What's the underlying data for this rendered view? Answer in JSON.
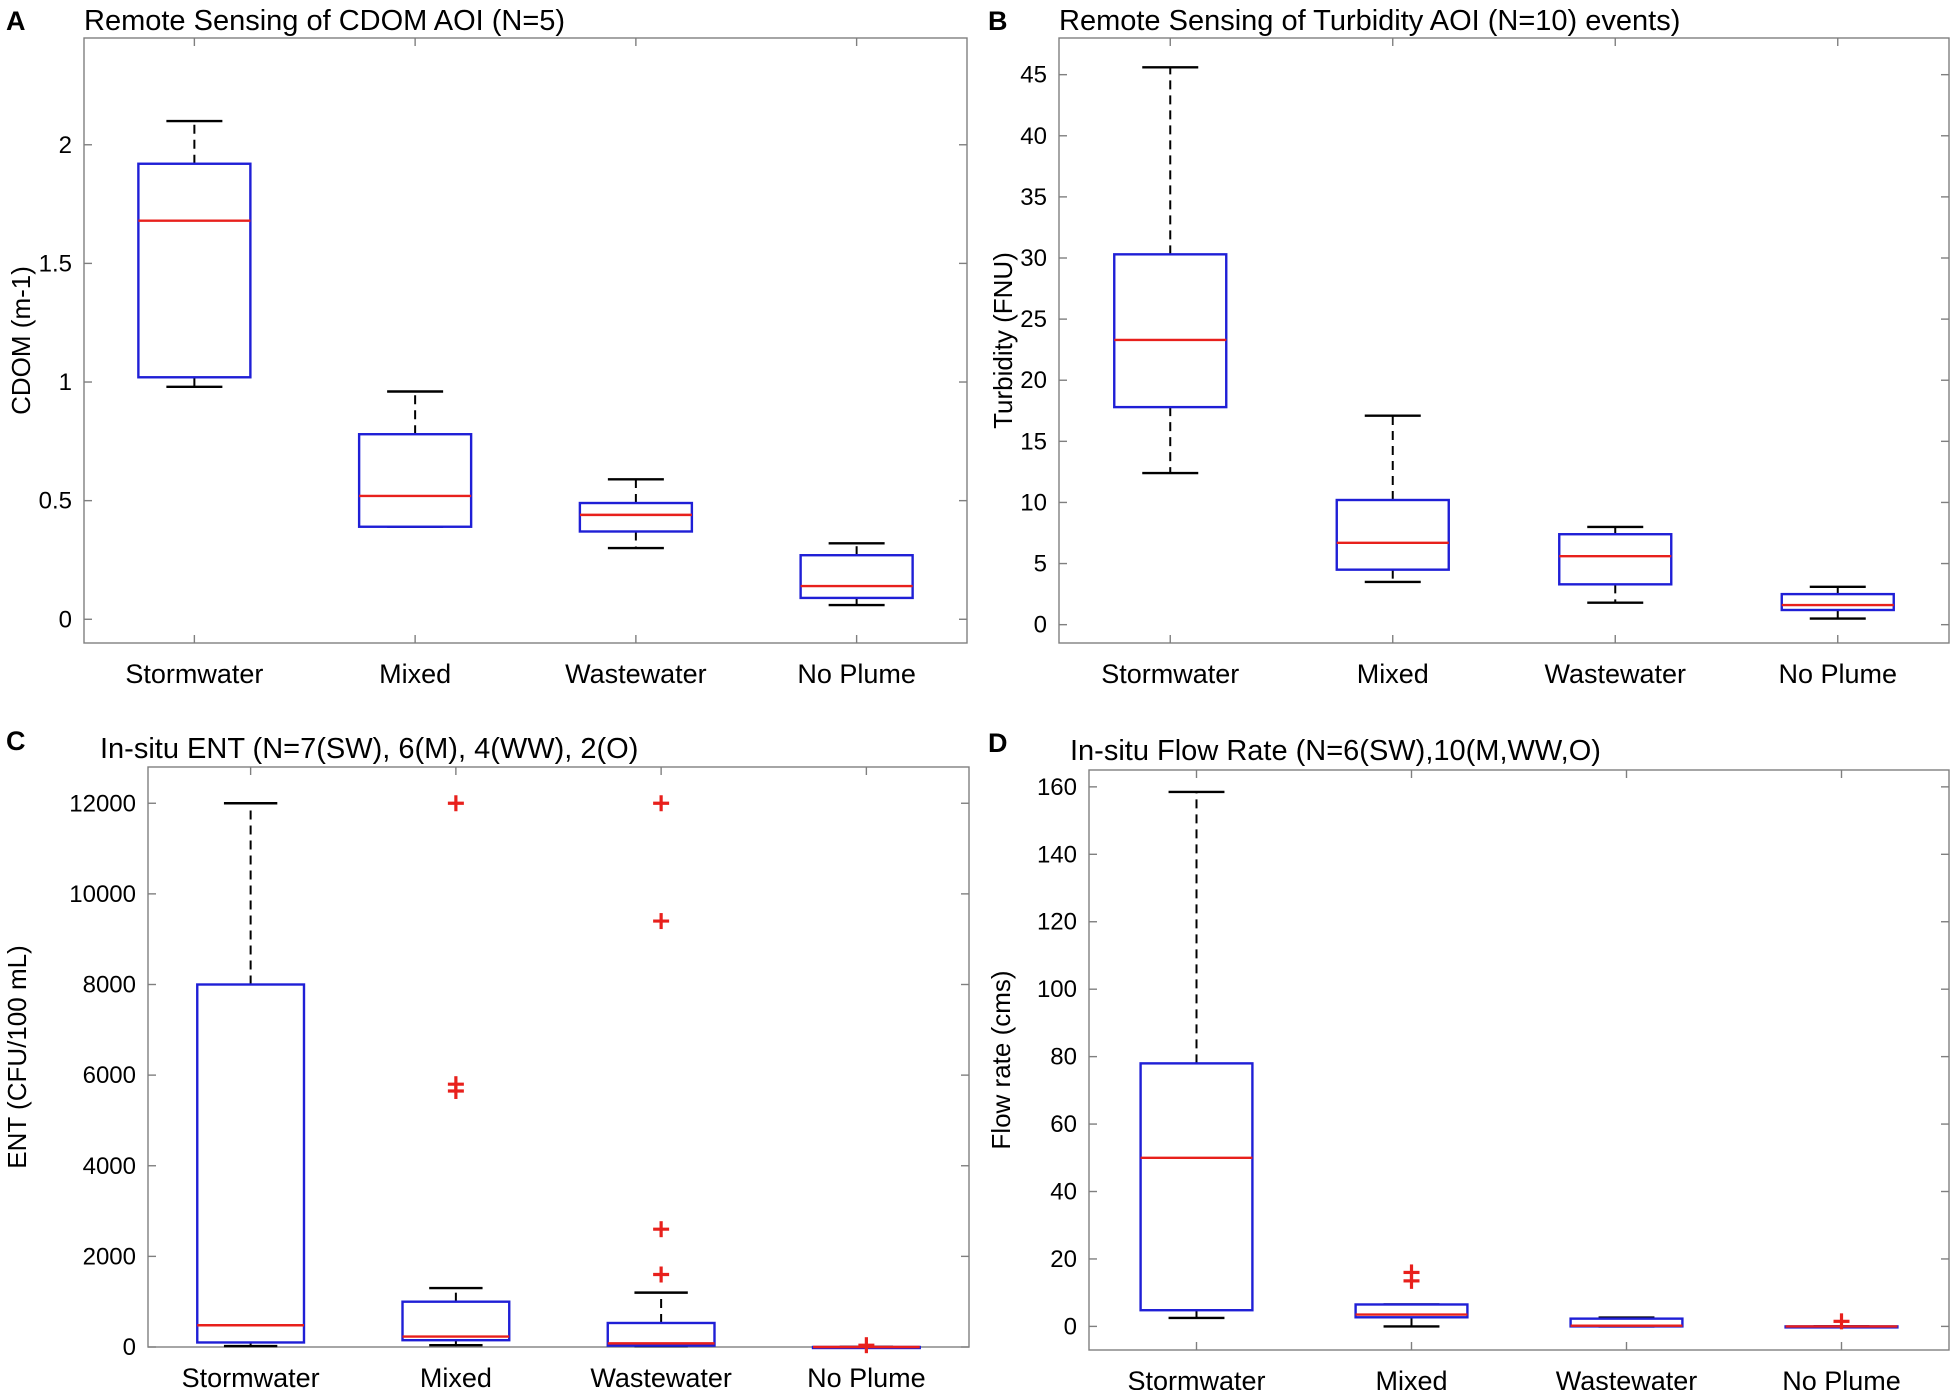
{
  "figure": {
    "panel_letters": [
      "A",
      "B",
      "C",
      "D"
    ]
  },
  "colors": {
    "box": "#1f1fd6",
    "median": "#e8201c",
    "whisker": "#000000",
    "outlier": "#e8201c",
    "axis": "#7f7f7f"
  },
  "chart_data": [
    {
      "type": "boxplot",
      "title": "Remote Sensing of CDOM AOI (N=5)",
      "xlabel": "",
      "ylabel": "CDOM (m-1)",
      "ylim": [
        -0.1,
        2.45
      ],
      "yticks": [
        0,
        0.5,
        1,
        1.5,
        2
      ],
      "ytick_labels": [
        "0",
        "0.5",
        "1",
        "1.5",
        "2"
      ],
      "categories": [
        "Stormwater",
        "Mixed",
        "Wastewater",
        "No Plume"
      ],
      "boxes": [
        {
          "min": 0.98,
          "q1": 1.02,
          "median": 1.68,
          "q3": 1.92,
          "max": 2.1,
          "outliers": []
        },
        {
          "min": 0.39,
          "q1": 0.39,
          "median": 0.52,
          "q3": 0.78,
          "max": 0.96,
          "outliers": []
        },
        {
          "min": 0.3,
          "q1": 0.37,
          "median": 0.44,
          "q3": 0.49,
          "max": 0.59,
          "outliers": []
        },
        {
          "min": 0.06,
          "q1": 0.09,
          "median": 0.14,
          "q3": 0.27,
          "max": 0.32,
          "outliers": []
        }
      ]
    },
    {
      "type": "boxplot",
      "title": "Remote Sensing of Turbidity AOI (N=10) events)",
      "xlabel": "",
      "ylabel": "Turbidity (FNU)",
      "ylim": [
        -1.5,
        48
      ],
      "yticks": [
        0,
        5,
        10,
        15,
        20,
        25,
        30,
        35,
        40,
        45
      ],
      "ytick_labels": [
        "0",
        "5",
        "10",
        "15",
        "20",
        "25",
        "30",
        "35",
        "40",
        "45"
      ],
      "categories": [
        "Stormwater",
        "Mixed",
        "Wastewater",
        "No Plume"
      ],
      "boxes": [
        {
          "min": 12.4,
          "q1": 17.8,
          "median": 23.3,
          "q3": 30.3,
          "max": 45.6,
          "outliers": []
        },
        {
          "min": 3.5,
          "q1": 4.5,
          "median": 6.7,
          "q3": 10.2,
          "max": 17.1,
          "outliers": []
        },
        {
          "min": 1.8,
          "q1": 3.3,
          "median": 5.6,
          "q3": 7.4,
          "max": 8.0,
          "outliers": []
        },
        {
          "min": 0.5,
          "q1": 1.2,
          "median": 1.6,
          "q3": 2.5,
          "max": 3.1,
          "outliers": []
        }
      ]
    },
    {
      "type": "boxplot",
      "title": "In-situ ENT (N=7(SW), 6(M), 4(WW), 2(O)",
      "xlabel": "",
      "ylabel": "ENT (CFU/100 mL)",
      "ylim": [
        0,
        12800
      ],
      "yticks": [
        0,
        2000,
        4000,
        6000,
        8000,
        10000,
        12000
      ],
      "ytick_labels": [
        "0",
        "2000",
        "4000",
        "6000",
        "8000",
        "10000",
        "12000"
      ],
      "categories": [
        "Stormwater",
        "Mixed",
        "Wastewater",
        "No Plume"
      ],
      "boxes": [
        {
          "min": 20,
          "q1": 100,
          "median": 480,
          "q3": 8000,
          "max": 12000,
          "outliers": []
        },
        {
          "min": 40,
          "q1": 150,
          "median": 230,
          "q3": 1000,
          "max": 1300,
          "outliers": [
            12000,
            5800,
            5650
          ]
        },
        {
          "min": 20,
          "q1": 30,
          "median": 80,
          "q3": 530,
          "max": 1200,
          "outliers": [
            12000,
            9400,
            2600,
            1600
          ]
        },
        {
          "min": 0,
          "q1": 0,
          "median": 0,
          "q3": 0,
          "max": 0,
          "outliers": [
            40
          ]
        }
      ]
    },
    {
      "type": "boxplot",
      "title": "In-situ Flow Rate (N=6(SW),10(M,WW,O)",
      "xlabel": "",
      "ylabel": "Flow rate (cms)",
      "ylim": [
        -7,
        165
      ],
      "yticks": [
        0,
        20,
        40,
        60,
        80,
        100,
        120,
        140,
        160
      ],
      "ytick_labels": [
        "0",
        "20",
        "40",
        "60",
        "80",
        "100",
        "120",
        "140",
        "160"
      ],
      "categories": [
        "Stormwater",
        "Mixed",
        "Wastewater",
        "No Plume"
      ],
      "boxes": [
        {
          "min": 2.5,
          "q1": 4.8,
          "median": 50,
          "q3": 78,
          "max": 158.5,
          "outliers": []
        },
        {
          "min": 0,
          "q1": 2.7,
          "median": 3.5,
          "q3": 6.5,
          "max": 6.5,
          "outliers": [
            16,
            13.5
          ]
        },
        {
          "min": 0,
          "q1": 0,
          "median": 0.2,
          "q3": 2.3,
          "max": 2.6,
          "outliers": []
        },
        {
          "min": 0,
          "q1": 0,
          "median": 0,
          "q3": 0,
          "max": 0,
          "outliers": [
            1.5
          ]
        }
      ]
    }
  ]
}
